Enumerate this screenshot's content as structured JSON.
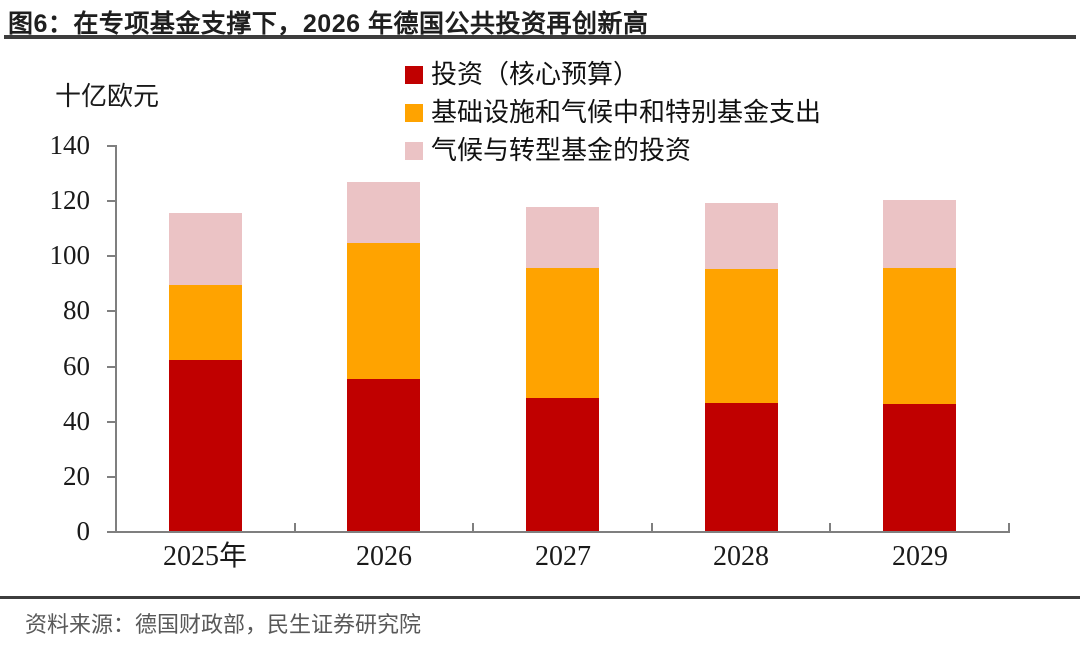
{
  "header": {
    "title": "图6：在专项基金支撑下，2026 年德国公共投资再创新高"
  },
  "footer": {
    "source": "资料来源：德国财政部，民生证券研究院"
  },
  "colors": {
    "series_core_budget": "#C00000",
    "series_infrastructure_fund": "#FFA300",
    "series_climate_fund": "#EBC3C5",
    "axis": "#7f7f7f",
    "title_rule": "#3d3d3d",
    "footer_text": "#595959"
  },
  "chart_data": {
    "type": "bar",
    "stacked": true,
    "title": "在专项基金支撑下，2026 年德国公共投资再创新高",
    "unit_label": "十亿欧元",
    "ylabel": "十亿欧元",
    "xlabel": "",
    "categories": [
      "2025年",
      "2026",
      "2027",
      "2028",
      "2029"
    ],
    "series": [
      {
        "name": "投资（核心预算）",
        "color": "#C00000",
        "values": [
          62,
          55,
          48.5,
          46.5,
          46
        ]
      },
      {
        "name": "基础设施和气候中和特别基金支出",
        "color": "#FFA300",
        "values": [
          27.5,
          49.5,
          47,
          48.5,
          49.5
        ]
      },
      {
        "name": "气候与转型基金的投资",
        "color": "#EBC3C5",
        "values": [
          26,
          22,
          22,
          24,
          24.5
        ]
      }
    ],
    "totals": [
      115.5,
      126.5,
      117.5,
      119,
      119.5
    ],
    "ylim": [
      0,
      140
    ],
    "yticks": [
      0,
      20,
      40,
      60,
      80,
      100,
      120,
      140
    ],
    "grid": false,
    "legend_position": "top-center"
  }
}
